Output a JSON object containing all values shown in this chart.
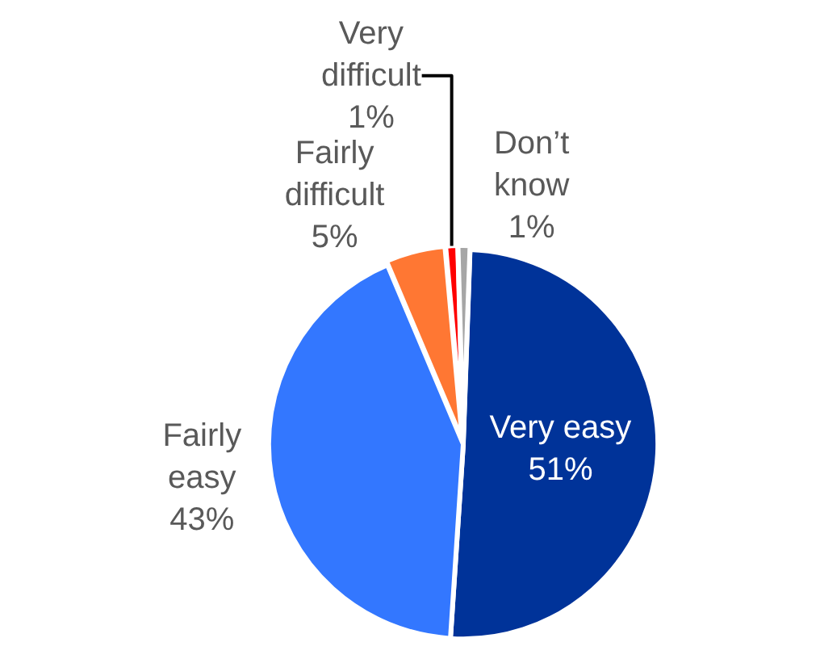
{
  "chart_data": {
    "type": "pie",
    "categories": [
      "Very easy",
      "Fairly easy",
      "Fairly difficult",
      "Very difficult",
      "Don’t know"
    ],
    "values": [
      51,
      43,
      5,
      1,
      1
    ],
    "value_labels": [
      "51%",
      "43%",
      "5%",
      "1%",
      "1%"
    ],
    "colors": [
      "#003399",
      "#3377ff",
      "#ff7733",
      "#ff0000",
      "#a6a6a6"
    ],
    "legend": false
  }
}
